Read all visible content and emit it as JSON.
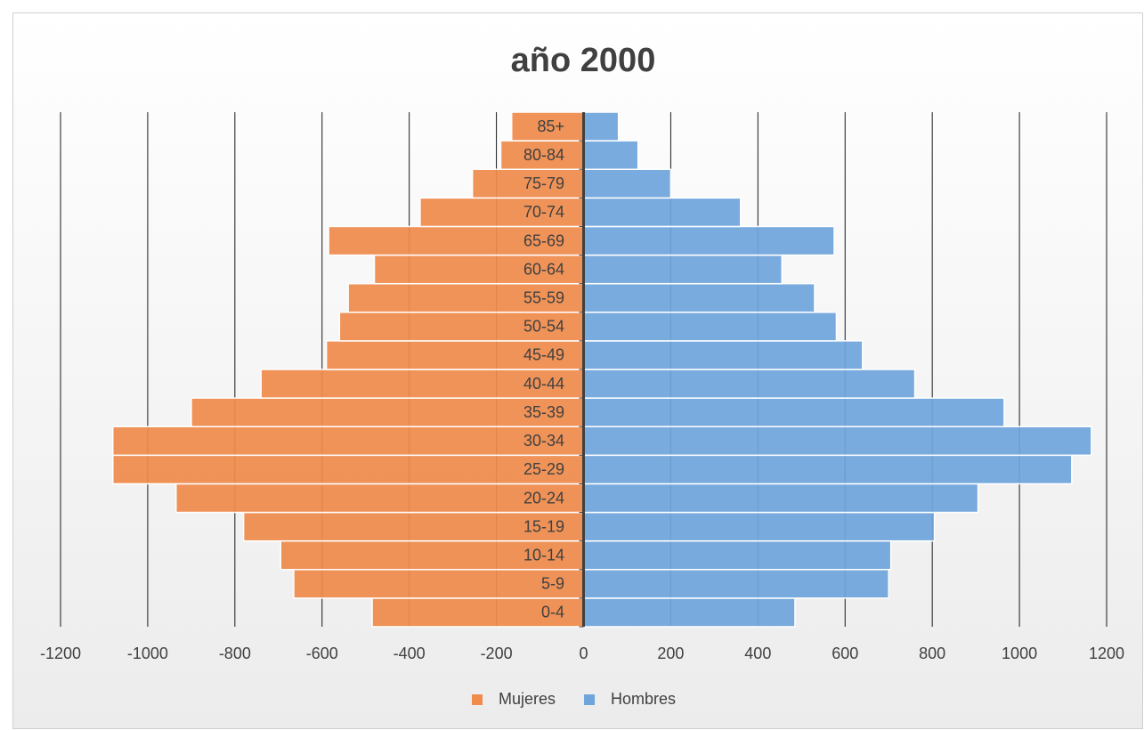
{
  "chart_data": {
    "type": "bar",
    "horizontal": true,
    "title": "año 2000",
    "categories": [
      "0-4",
      "5-9",
      "10-14",
      "15-19",
      "20-24",
      "25-29",
      "30-34",
      "35-39",
      "40-44",
      "45-49",
      "50-54",
      "55-59",
      "60-64",
      "65-69",
      "70-74",
      "75-79",
      "80-84",
      "85+"
    ],
    "series": [
      {
        "name": "Mujeres",
        "color": "#ef8b4b",
        "values": [
          -485,
          -665,
          -695,
          -780,
          -935,
          -1080,
          -1080,
          -900,
          -740,
          -590,
          -560,
          -540,
          -480,
          -585,
          -375,
          -255,
          -190,
          -165
        ]
      },
      {
        "name": "Hombres",
        "color": "#6fa5db",
        "values": [
          485,
          700,
          705,
          805,
          905,
          1120,
          1165,
          965,
          760,
          640,
          580,
          530,
          455,
          575,
          360,
          200,
          125,
          80
        ]
      }
    ],
    "xlim": [
      -1200,
      1200
    ],
    "xticks": [
      -1200,
      -1000,
      -800,
      -600,
      -400,
      -200,
      0,
      200,
      400,
      600,
      800,
      1000,
      1200
    ],
    "grid": true,
    "legend": "bottom"
  }
}
